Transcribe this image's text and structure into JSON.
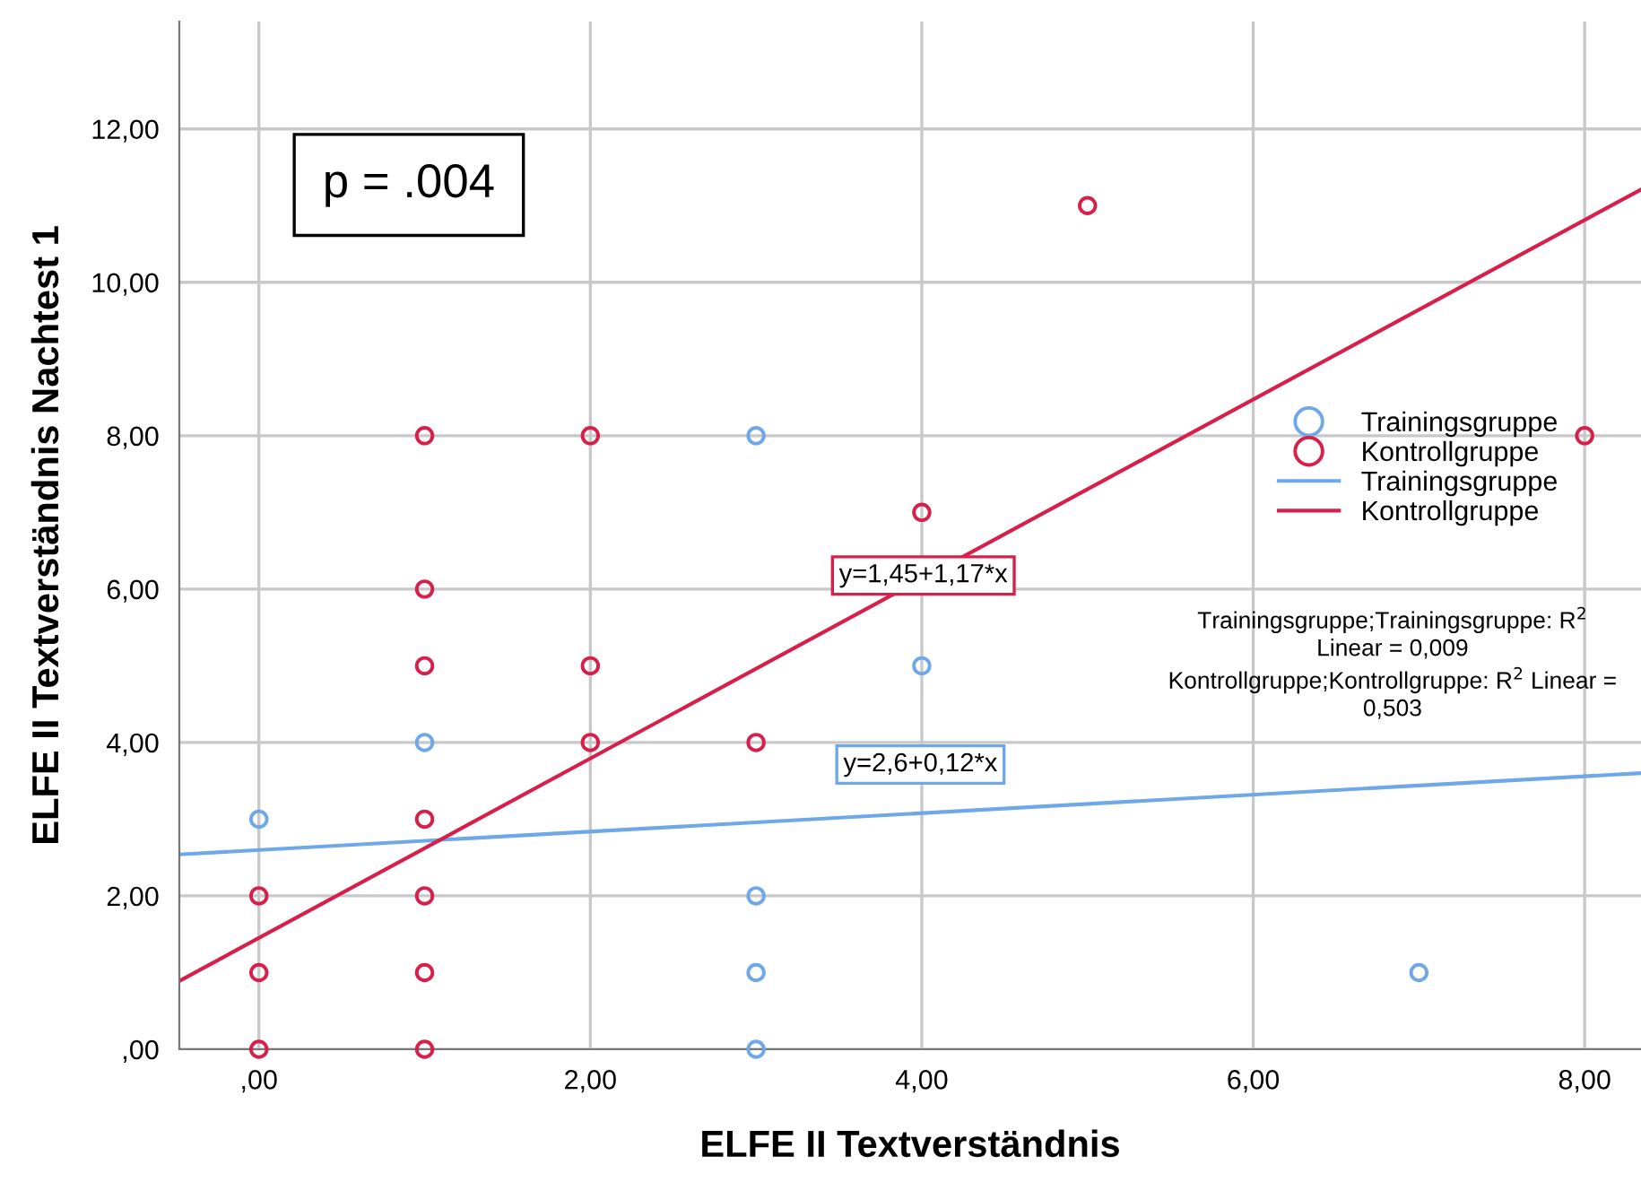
{
  "chart_data": {
    "type": "scatter",
    "xlabel": "ELFE II Textverständnis",
    "ylabel": "ELFE II Textverständnis Nachtest 1",
    "series": [
      {
        "name": "Trainingsgruppe",
        "color": "#6fa8e8",
        "marker": "circle",
        "x": [
          0,
          1,
          3,
          4,
          3,
          3,
          3,
          7
        ],
        "values": [
          3,
          4,
          8,
          5,
          2,
          1,
          0,
          1
        ]
      },
      {
        "name": "Kontrollgruppe",
        "color": "#d81f4a",
        "marker": "circle",
        "x": [
          1,
          2,
          5,
          8,
          4,
          1,
          1,
          2,
          2,
          3,
          1,
          0,
          1,
          0,
          1,
          0,
          1
        ],
        "values": [
          8,
          8,
          11,
          8,
          7,
          6,
          5,
          5,
          4,
          4,
          3,
          2,
          2,
          1,
          1,
          0,
          0
        ]
      },
      {
        "name": "Trainingsgruppe",
        "type": "line",
        "color": "#6fa8e8",
        "x": [
          -0.48,
          8.34
        ],
        "values": [
          2.54,
          3.6
        ]
      },
      {
        "name": "Kontrollgruppe",
        "type": "line",
        "color": "#d81f4a",
        "x": [
          -0.48,
          8.34
        ],
        "values": [
          0.89,
          11.21
        ]
      }
    ],
    "xlim": [
      -0.48,
      8.34
    ],
    "ylim": [
      0,
      13.4
    ],
    "xticks": [
      {
        "value": 0,
        "label": ",00"
      },
      {
        "value": 2,
        "label": "2,00"
      },
      {
        "value": 4,
        "label": "4,00"
      },
      {
        "value": 6,
        "label": "6,00"
      },
      {
        "value": 8,
        "label": "8,00"
      }
    ],
    "yticks": [
      {
        "value": 0,
        "label": ",00"
      },
      {
        "value": 2,
        "label": "2,00"
      },
      {
        "value": 4,
        "label": "4,00"
      },
      {
        "value": 6,
        "label": "6,00"
      },
      {
        "value": 8,
        "label": "8,00"
      },
      {
        "value": 10,
        "label": "10,00"
      },
      {
        "value": 12,
        "label": "12,00"
      }
    ],
    "grid": true,
    "legend": "right",
    "annotations": [
      "p = .004",
      "y=1,45+1,17*x",
      "y=2,6+0,12*x",
      "Trainingsgruppe;Trainingsgruppe: R$^{2}$\nLinear = 0,009\nKontrollgruppe;Kontrollgruppe: R$^{2}$ Linear =\n0,503"
    ]
  }
}
